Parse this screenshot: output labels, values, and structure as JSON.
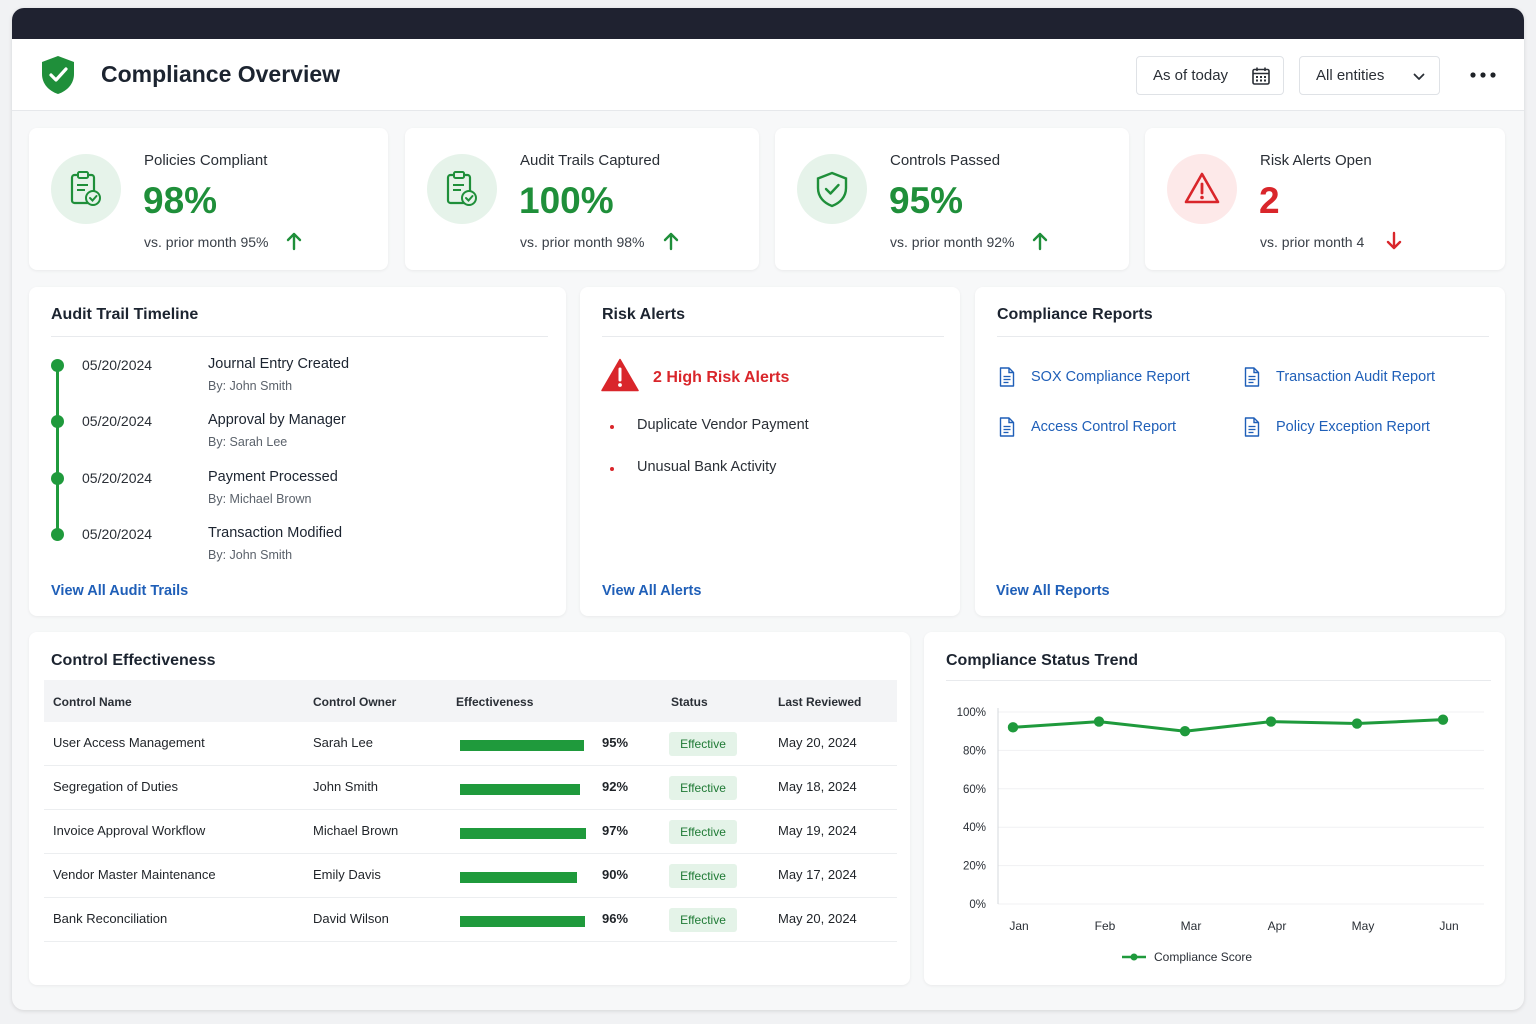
{
  "header": {
    "title": "Compliance Overview",
    "date_filter": "As of today",
    "entity_filter": "All entities"
  },
  "kpis": [
    {
      "label": "Policies Compliant",
      "value": "98%",
      "sub": "vs. prior month 95%",
      "trend": "up",
      "icon": "clipboard-check-icon"
    },
    {
      "label": "Audit Trails Captured",
      "value": "100%",
      "sub": "vs. prior month 98%",
      "trend": "up",
      "icon": "clipboard-check-icon"
    },
    {
      "label": "Controls Passed",
      "value": "95%",
      "sub": "vs. prior month 92%",
      "trend": "up",
      "icon": "shield-check-icon"
    },
    {
      "label": "Risk Alerts Open",
      "value": "2",
      "sub": "vs. prior month 4",
      "trend": "down",
      "icon": "warning-icon"
    }
  ],
  "audit_timeline": {
    "title": "Audit Trail Timeline",
    "events": [
      {
        "date": "05/20/2024",
        "title": "Journal Entry Created",
        "by": "By: John Smith"
      },
      {
        "date": "05/20/2024",
        "title": "Approval by Manager",
        "by": "By: Sarah Lee"
      },
      {
        "date": "05/20/2024",
        "title": "Payment Processed",
        "by": "By: Michael Brown"
      },
      {
        "date": "05/20/2024",
        "title": "Transaction Modified",
        "by": "By: John Smith"
      }
    ],
    "link": "View All Audit Trails"
  },
  "risk_alerts": {
    "title": "Risk Alerts",
    "headline": "2 High Risk Alerts",
    "items": [
      "Duplicate Vendor Payment",
      "Unusual Bank Activity"
    ],
    "link": "View All Alerts"
  },
  "reports": {
    "title": "Compliance Reports",
    "items": [
      "SOX Compliance Report",
      "Transaction Audit Report",
      "Access Control Report",
      "Policy Exception Report"
    ],
    "link": "View All Reports"
  },
  "controls": {
    "title": "Control Effectiveness",
    "columns": [
      "Control Name",
      "Control Owner",
      "Effectiveness",
      "Status",
      "Last Reviewed"
    ],
    "rows": [
      {
        "name": "User Access Management",
        "owner": "Sarah Lee",
        "effectiveness": 95,
        "pct": "95%",
        "status": "Effective",
        "reviewed": "May 20, 2024"
      },
      {
        "name": "Segregation of Duties",
        "owner": "John Smith",
        "effectiveness": 92,
        "pct": "92%",
        "status": "Effective",
        "reviewed": "May 18, 2024"
      },
      {
        "name": "Invoice Approval Workflow",
        "owner": "Michael Brown",
        "effectiveness": 97,
        "pct": "97%",
        "status": "Effective",
        "reviewed": "May 19, 2024"
      },
      {
        "name": "Vendor Master Maintenance",
        "owner": "Emily Davis",
        "effectiveness": 90,
        "pct": "90%",
        "status": "Effective",
        "reviewed": "May 17, 2024"
      },
      {
        "name": "Bank Reconciliation",
        "owner": "David Wilson",
        "effectiveness": 96,
        "pct": "96%",
        "status": "Effective",
        "reviewed": "May 20, 2024"
      }
    ]
  },
  "trend": {
    "title": "Compliance Status Trend"
  },
  "chart_data": {
    "type": "line",
    "title": "Compliance Status Trend",
    "categories": [
      "Jan",
      "Feb",
      "Mar",
      "Apr",
      "May",
      "Jun"
    ],
    "series": [
      {
        "name": "Compliance Score",
        "values": [
          92,
          95,
          90,
          95,
          94,
          96
        ]
      }
    ],
    "ylim": [
      0,
      100
    ],
    "yticks": [
      "0%",
      "20%",
      "40%",
      "60%",
      "80%",
      "100%"
    ],
    "legend": "bottom",
    "color": "#1f9a3c"
  },
  "colors": {
    "accent_green": "#1f9a3c",
    "alert_red": "#d9262b",
    "link_blue": "#1f5fb8",
    "titlebar": "#1f2230"
  }
}
